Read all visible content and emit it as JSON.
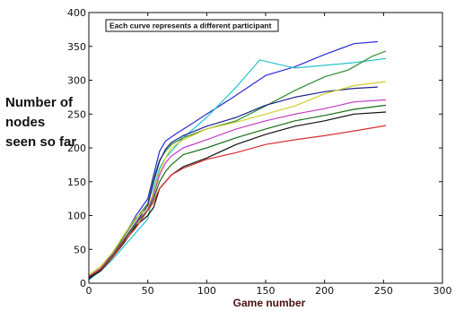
{
  "chart_data": {
    "type": "line",
    "title": "",
    "xlabel": "Game number",
    "ylabel": "Number of nodes seen so far",
    "xlim": [
      0,
      300
    ],
    "ylim": [
      0,
      400
    ],
    "xticks": [
      0,
      50,
      100,
      150,
      200,
      250,
      300
    ],
    "yticks": [
      0,
      50,
      100,
      150,
      200,
      250,
      300,
      350,
      400
    ],
    "xtick_labels": [
      "0",
      "50",
      "100",
      "150",
      "200",
      "250",
      "300"
    ],
    "ytick_labels": [
      "0",
      "50",
      "100",
      "150",
      "200",
      "250",
      "300",
      "350",
      "400"
    ],
    "grid": false,
    "legend": "none",
    "annotation": "Each curve represents a different participant",
    "series": [
      {
        "color": "#2b2bd6",
        "x": [
          0,
          10,
          20,
          30,
          40,
          50,
          55,
          60,
          65,
          75,
          85,
          100,
          120,
          150,
          175,
          200,
          225,
          245
        ],
        "y": [
          8,
          20,
          45,
          70,
          100,
          125,
          160,
          195,
          210,
          222,
          233,
          250,
          272,
          307,
          320,
          338,
          354,
          357
        ]
      },
      {
        "color": "#22c4cc",
        "x": [
          0,
          10,
          20,
          30,
          40,
          50,
          55,
          60,
          65,
          70,
          80,
          100,
          125,
          145,
          175,
          200,
          225,
          252
        ],
        "y": [
          5,
          18,
          35,
          55,
          75,
          95,
          140,
          170,
          185,
          195,
          215,
          245,
          290,
          330,
          318,
          322,
          326,
          332
        ]
      },
      {
        "color": "#2f8c2f",
        "x": [
          0,
          10,
          20,
          30,
          40,
          50,
          55,
          60,
          65,
          70,
          80,
          100,
          125,
          150,
          175,
          200,
          220,
          240,
          252
        ],
        "y": [
          10,
          22,
          42,
          70,
          95,
          118,
          155,
          182,
          195,
          205,
          215,
          228,
          240,
          262,
          285,
          305,
          315,
          335,
          343
        ]
      },
      {
        "color": "#1f1f8f",
        "x": [
          0,
          10,
          20,
          30,
          40,
          50,
          55,
          60,
          65,
          70,
          80,
          100,
          125,
          150,
          175,
          200,
          225,
          245
        ],
        "y": [
          6,
          20,
          40,
          65,
          90,
          115,
          150,
          180,
          198,
          208,
          218,
          232,
          245,
          263,
          275,
          283,
          288,
          290
        ]
      },
      {
        "color": "#cfcf2a",
        "x": [
          0,
          10,
          20,
          30,
          40,
          50,
          55,
          60,
          65,
          70,
          80,
          100,
          125,
          150,
          175,
          200,
          225,
          252
        ],
        "y": [
          12,
          25,
          45,
          72,
          97,
          110,
          135,
          165,
          185,
          200,
          212,
          228,
          238,
          250,
          262,
          280,
          292,
          298
        ]
      },
      {
        "color": "#c23cc2",
        "x": [
          0,
          10,
          20,
          30,
          40,
          50,
          55,
          60,
          65,
          70,
          80,
          100,
          125,
          150,
          175,
          200,
          225,
          252
        ],
        "y": [
          10,
          22,
          42,
          66,
          90,
          108,
          130,
          160,
          178,
          188,
          200,
          212,
          228,
          240,
          250,
          258,
          268,
          271
        ]
      },
      {
        "color": "#176d17",
        "x": [
          0,
          10,
          20,
          30,
          40,
          50,
          55,
          60,
          65,
          70,
          80,
          100,
          125,
          150,
          175,
          200,
          225,
          252
        ],
        "y": [
          9,
          21,
          40,
          64,
          88,
          108,
          125,
          150,
          165,
          175,
          190,
          200,
          215,
          228,
          240,
          248,
          257,
          263
        ]
      },
      {
        "color": "#111111",
        "x": [
          0,
          10,
          20,
          30,
          40,
          50,
          55,
          60,
          65,
          70,
          80,
          100,
          125,
          150,
          175,
          200,
          225,
          252
        ],
        "y": [
          8,
          18,
          38,
          60,
          85,
          100,
          112,
          140,
          150,
          160,
          172,
          185,
          205,
          220,
          232,
          240,
          250,
          253
        ]
      },
      {
        "color": "#d62f2f",
        "x": [
          0,
          10,
          20,
          30,
          40,
          50,
          55,
          60,
          65,
          70,
          80,
          100,
          125,
          150,
          175,
          200,
          225,
          252
        ],
        "y": [
          10,
          20,
          38,
          62,
          82,
          108,
          120,
          140,
          150,
          160,
          170,
          183,
          193,
          205,
          212,
          218,
          225,
          233
        ]
      }
    ]
  }
}
